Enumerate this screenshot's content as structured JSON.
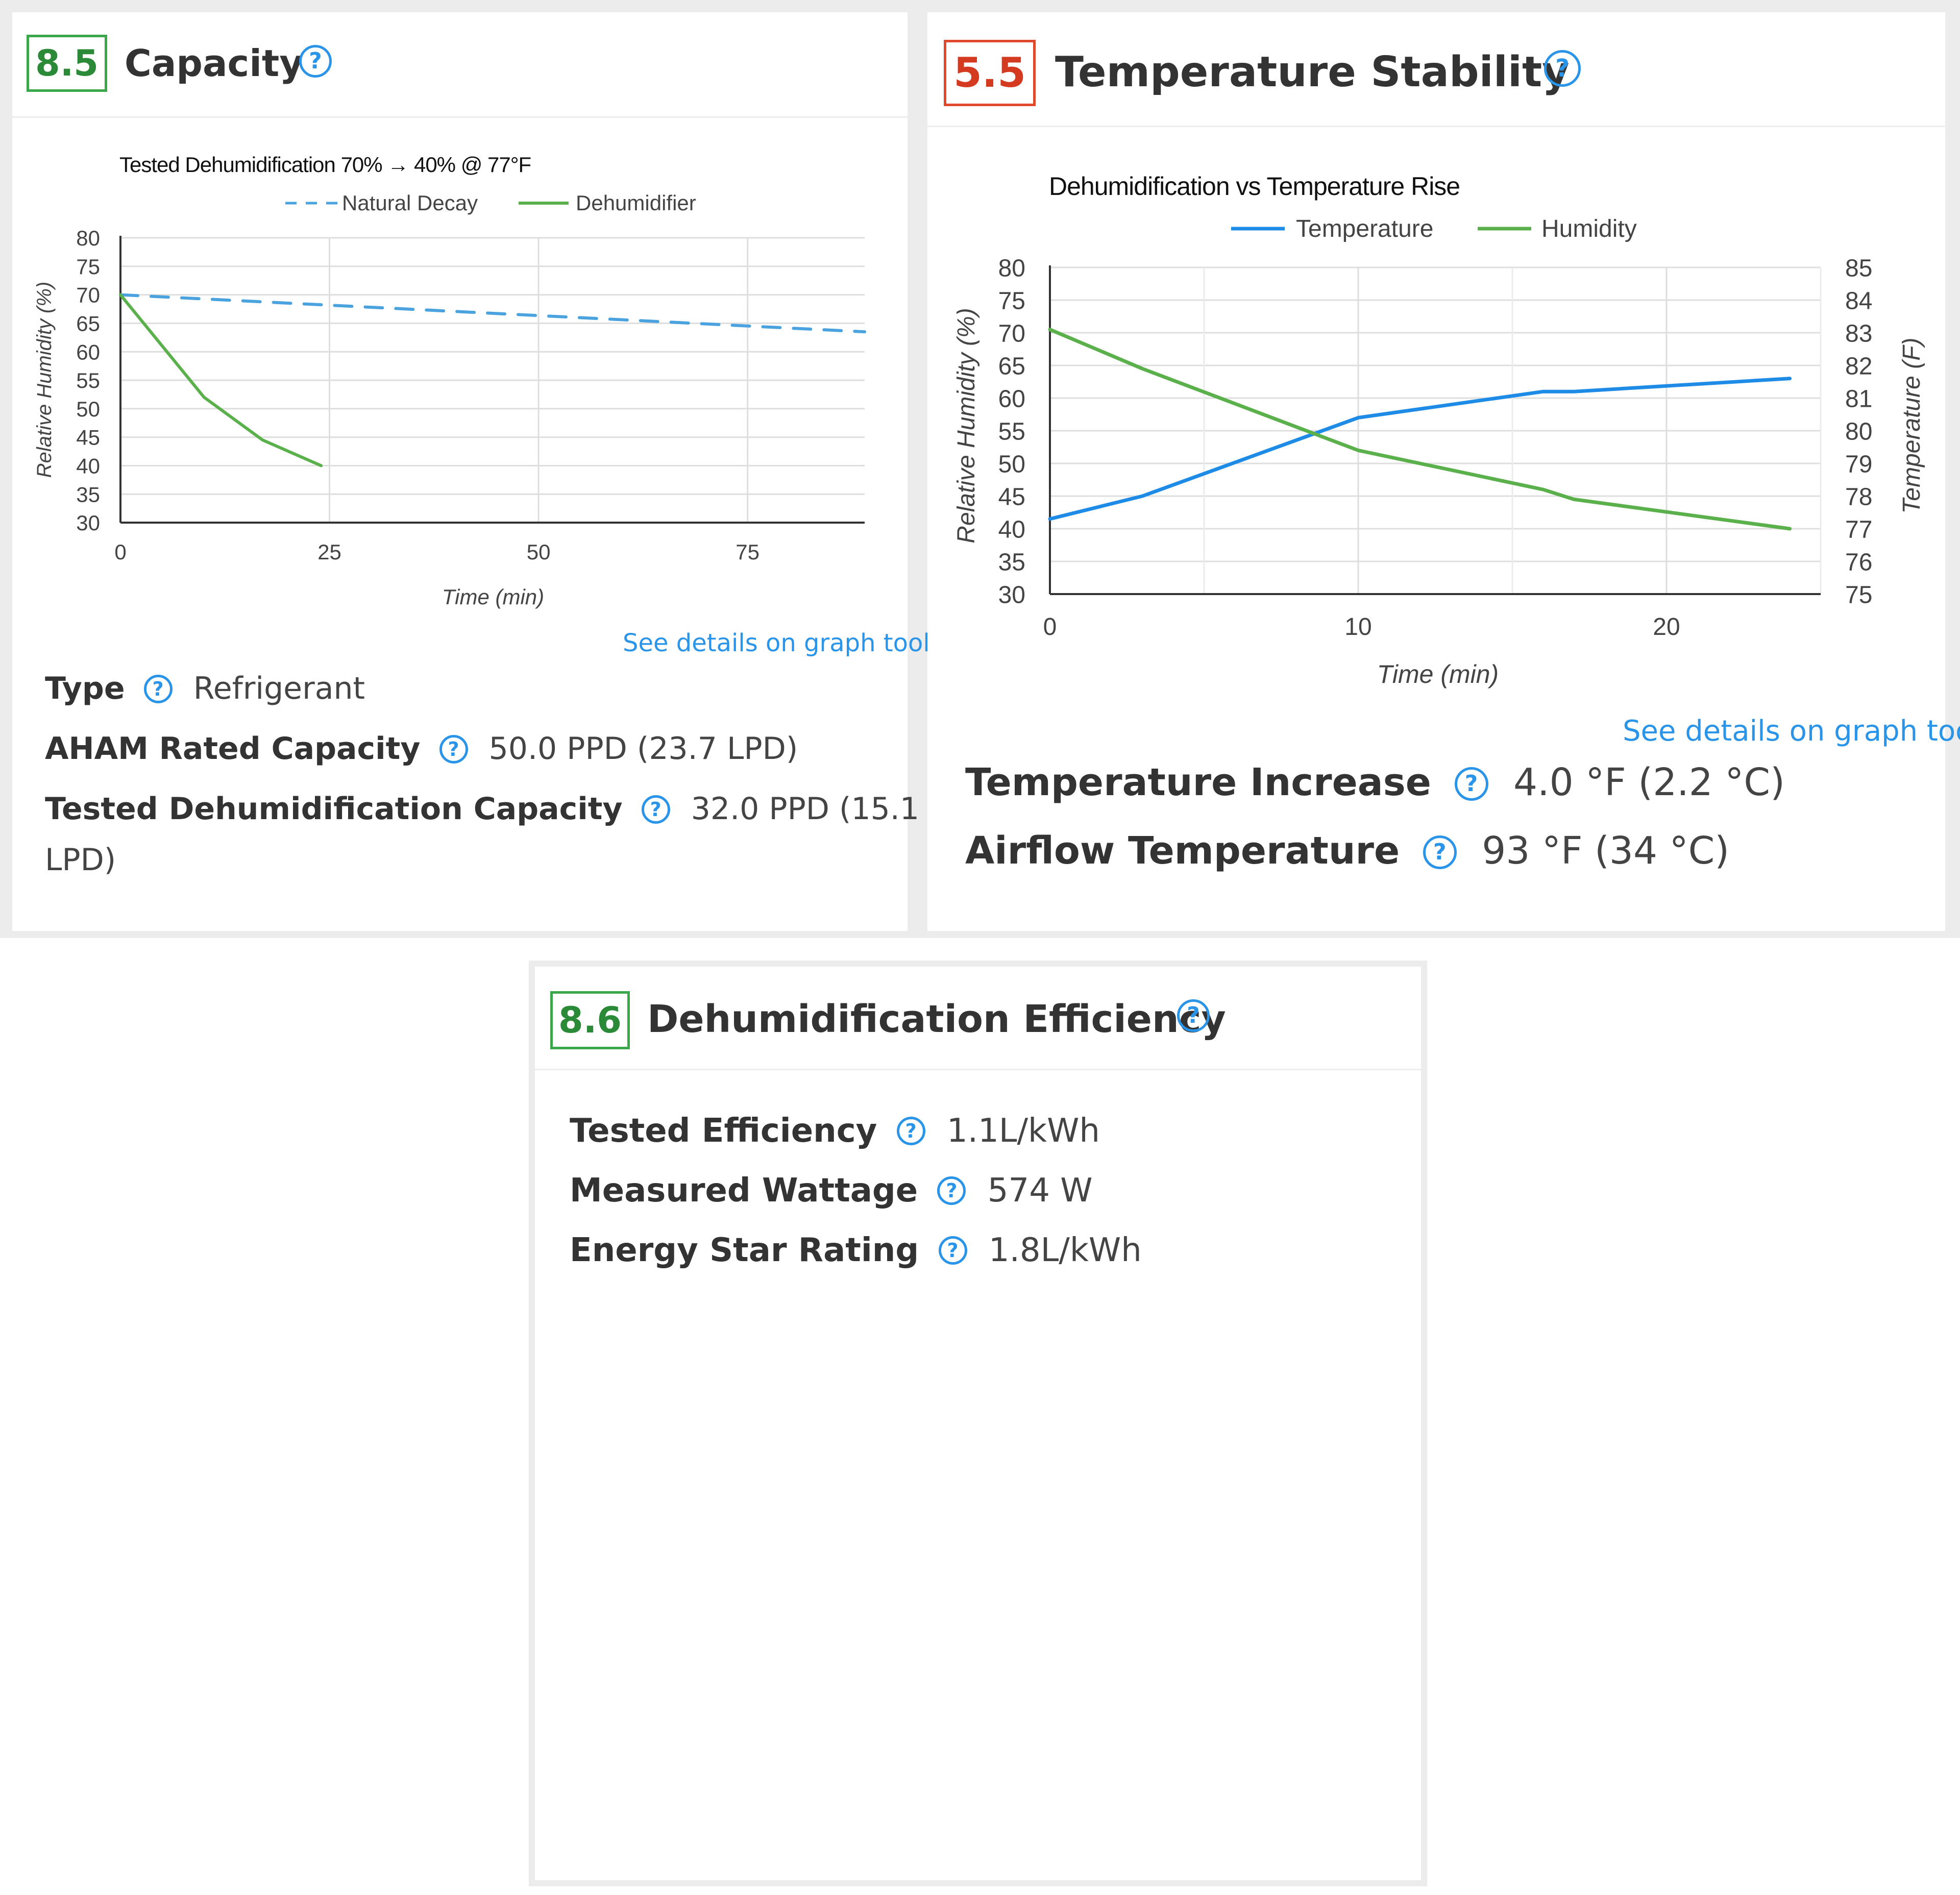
{
  "capacity": {
    "score": "8.5",
    "title": "Capacity",
    "help": "?",
    "link": "See details on graph tool",
    "specs": [
      {
        "label": "Type",
        "value": "Refrigerant"
      },
      {
        "label": "AHAM Rated Capacity",
        "value": "50.0 PPD (23.7 LPD)"
      },
      {
        "label": "Tested Dehumidification Capacity",
        "value": "32.0 PPD (15.1",
        "value_wrap": "LPD)"
      }
    ]
  },
  "temperature_stability": {
    "score": "5.5",
    "title": "Temperature Stability",
    "help": "?",
    "link": "See details on graph tool",
    "specs": [
      {
        "label": "Temperature Increase",
        "value": "4.0 °F (2.2 °C)"
      },
      {
        "label": "Airflow Temperature",
        "value": "93 °F (34 °C)"
      }
    ]
  },
  "efficiency": {
    "score": "8.6",
    "title": "Dehumidification Efficiency",
    "help": "?",
    "specs": [
      {
        "label": "Tested Efficiency",
        "value": "1.1L/kWh"
      },
      {
        "label": "Measured Wattage",
        "value": "574 W"
      },
      {
        "label": "Energy Star Rating",
        "value": "1.8L/kWh"
      }
    ]
  },
  "chart_data": [
    {
      "type": "line",
      "title": "Tested Dehumidification 70% → 40% @ 77°F",
      "xlabel": "Time (min)",
      "ylabel": "Relative Humidity (%)",
      "xlim": [
        0,
        89
      ],
      "ylim": [
        30,
        80
      ],
      "x_ticks": [
        0,
        25,
        50,
        75
      ],
      "y_ticks": [
        30,
        35,
        40,
        45,
        50,
        55,
        60,
        65,
        70,
        75,
        80
      ],
      "legend": "top",
      "grid": true,
      "series": [
        {
          "name": "Natural Decay",
          "color": "#4aa3df",
          "dash": true,
          "x": [
            0,
            89
          ],
          "y": [
            70,
            63.5
          ]
        },
        {
          "name": "Dehumidifier",
          "color": "#5ab04a",
          "dash": false,
          "x": [
            0,
            10,
            17,
            24
          ],
          "y": [
            70,
            52,
            44.5,
            40
          ]
        }
      ]
    },
    {
      "type": "line",
      "title": "Dehumidification vs Temperature Rise",
      "xlabel": "Time (min)",
      "ylabel": "Relative Humidity (%)",
      "y2label": "Temperature (F)",
      "xlim": [
        0,
        25
      ],
      "ylim": [
        30,
        80
      ],
      "y2lim": [
        75,
        85
      ],
      "x_ticks": [
        0,
        10,
        20
      ],
      "y_ticks": [
        30,
        35,
        40,
        45,
        50,
        55,
        60,
        65,
        70,
        75,
        80
      ],
      "y2_ticks": [
        75,
        76,
        77,
        78,
        79,
        80,
        81,
        82,
        83,
        84,
        85
      ],
      "legend": "top",
      "grid": true,
      "series": [
        {
          "name": "Temperature",
          "color": "#1e8be6",
          "axis": "right",
          "x": [
            0,
            3,
            10,
            16,
            17,
            24
          ],
          "y": [
            77.3,
            78.0,
            80.4,
            81.2,
            81.2,
            81.6
          ]
        },
        {
          "name": "Humidity",
          "color": "#5ab04a",
          "axis": "left",
          "x": [
            0,
            3,
            10,
            16,
            17,
            24
          ],
          "y": [
            70.5,
            64.5,
            52,
            46,
            44.5,
            40
          ]
        }
      ]
    }
  ]
}
